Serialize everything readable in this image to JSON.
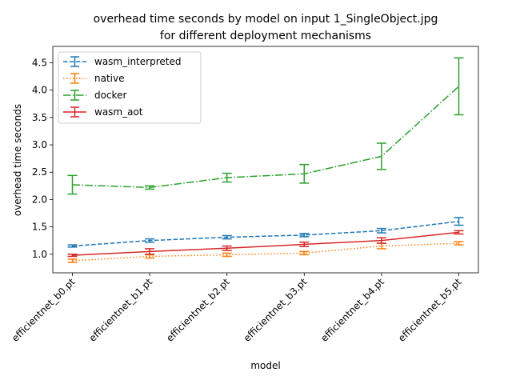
{
  "chart_data": {
    "type": "line",
    "title": "overhead time seconds by model on input 1_SingleObject.jpg",
    "subtitle": "for different deployment mechanisms",
    "xlabel": "model",
    "ylabel": "overhead time seconds",
    "categories": [
      "efficientnet_b0.pt",
      "efficientnet_b1.pt",
      "efficientnet_b2.pt",
      "efficientnet_b3.pt",
      "efficientnet_b4.pt",
      "efficientnet_b5.pt"
    ],
    "yticks": [
      "1.0",
      "1.5",
      "2.0",
      "2.5",
      "3.0",
      "3.5",
      "4.0",
      "4.5"
    ],
    "ylim": [
      0.66,
      4.8
    ],
    "grid": false,
    "legend_position": "top-left",
    "series": [
      {
        "name": "wasm_interpreted",
        "color": "#1f77b4",
        "dash": "dashed",
        "values": [
          1.15,
          1.25,
          1.31,
          1.35,
          1.43,
          1.6
        ],
        "err": [
          0.02,
          0.03,
          0.03,
          0.03,
          0.04,
          0.07
        ]
      },
      {
        "name": "native",
        "color": "#ff7f0e",
        "dash": "dotted",
        "values": [
          0.88,
          0.96,
          0.99,
          1.02,
          1.15,
          1.2
        ],
        "err": [
          0.03,
          0.03,
          0.03,
          0.03,
          0.05,
          0.03
        ]
      },
      {
        "name": "docker",
        "color": "#2ca02c",
        "dash": "dashdot",
        "values": [
          2.27,
          2.22,
          2.4,
          2.47,
          2.79,
          4.07
        ],
        "err": [
          0.17,
          0.03,
          0.08,
          0.17,
          0.24,
          0.52
        ]
      },
      {
        "name": "wasm_aot",
        "color": "#d62728",
        "dash": "solid",
        "values": [
          0.98,
          1.05,
          1.11,
          1.18,
          1.25,
          1.4
        ],
        "err": [
          0.02,
          0.05,
          0.04,
          0.04,
          0.05,
          0.03
        ]
      }
    ]
  }
}
